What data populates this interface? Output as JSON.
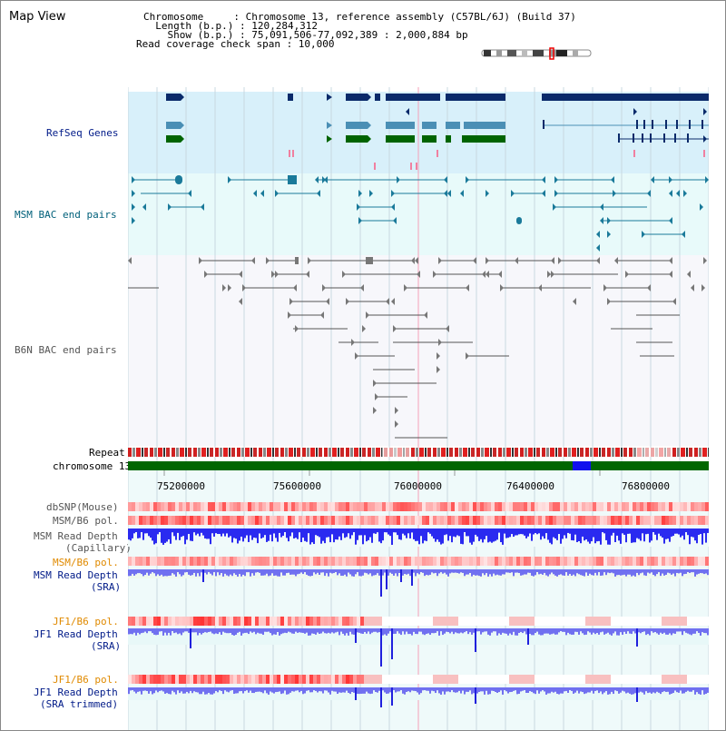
{
  "view": {
    "title": "Map View",
    "header_lines": [
      "Chromosome     : Chromosome 13, reference assembly (C57BL/6J) (Build 37)",
      "  Length (b.p.) : 120,284,312",
      "    Show (b.p.) : 75,091,506-77,092,389 : 2,000,884 bp",
      "Read coverage check span : 10,000"
    ]
  },
  "tracks": {
    "refseq": "RefSeq Genes",
    "msm_bac": "MSM BAC end pairs",
    "b6n_bac": "B6N BAC end pairs",
    "repeat": "Repeat",
    "chromosome": "chromosome 13",
    "dbsnp": "dbSNP(Mouse)",
    "msm_b6_pol_1": "MSM/B6 pol.",
    "msm_depth_cap_1": "MSM Read Depth",
    "msm_depth_cap_2": "(Capillary)",
    "msm_b6_pol_2": "MSM/B6 pol.",
    "msm_depth_sra_1": "MSM Read Depth",
    "msm_depth_sra_2": "(SRA)",
    "jf1_b6_pol_1": "JF1/B6 pol.",
    "jf1_depth_sra_1": "JF1 Read Depth",
    "jf1_depth_sra_2": "(SRA)",
    "jf1_b6_pol_2": "JF1/B6 pol.",
    "jf1_depth_trim_1": "JF1 Read Depth",
    "jf1_depth_trim_2": "(SRA trimmed)"
  },
  "axis": {
    "ticks": [
      "75200000",
      "75600000",
      "76000000",
      "76400000",
      "76800000"
    ]
  },
  "colors": {
    "refseq_bg": "#d8f0fa",
    "bac_bg": "#e8fafa",
    "navy": "#0a2a6a",
    "steel": "#4a8fb5",
    "green": "#006400",
    "teal": "#1a7a9a",
    "chrom_green": "#006600",
    "depth_blue": "#2020ee",
    "depth_light": "#7070f0"
  }
}
